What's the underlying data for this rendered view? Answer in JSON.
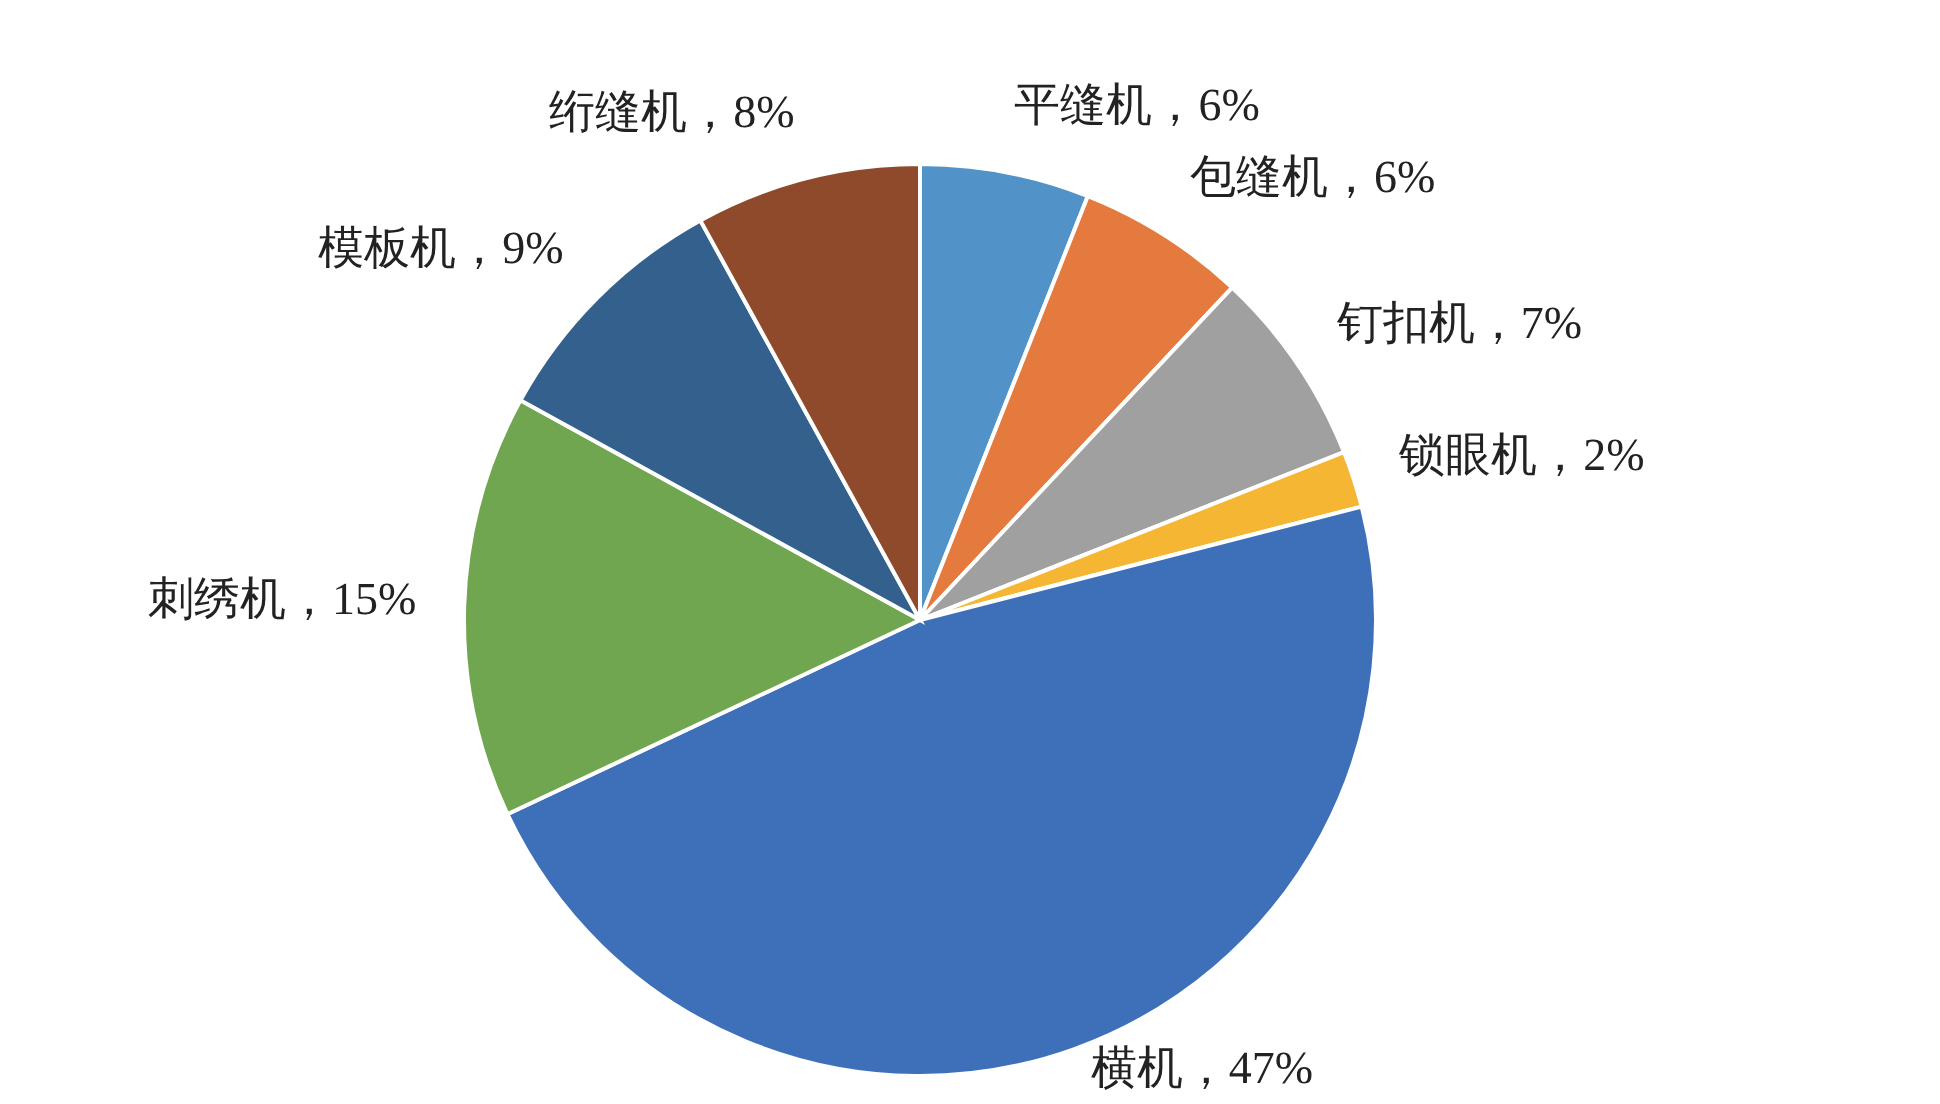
{
  "chart_data": {
    "type": "pie",
    "categories": [
      "平缝机",
      "包缝机",
      "钉扣机",
      "锁眼机",
      "横机",
      "刺绣机",
      "模板机",
      "绗缝机"
    ],
    "values": [
      6,
      6,
      7,
      2,
      47,
      15,
      9,
      8
    ],
    "value_labels": [
      "6%",
      "6%",
      "7%",
      "2%",
      "47%",
      "15%",
      "9%",
      "8%"
    ],
    "colors": [
      "#5193c8",
      "#e57a3f",
      "#a0a0a0",
      "#f5b733",
      "#3d70b8",
      "#70a650",
      "#33608c",
      "#8f4a2c"
    ]
  }
}
